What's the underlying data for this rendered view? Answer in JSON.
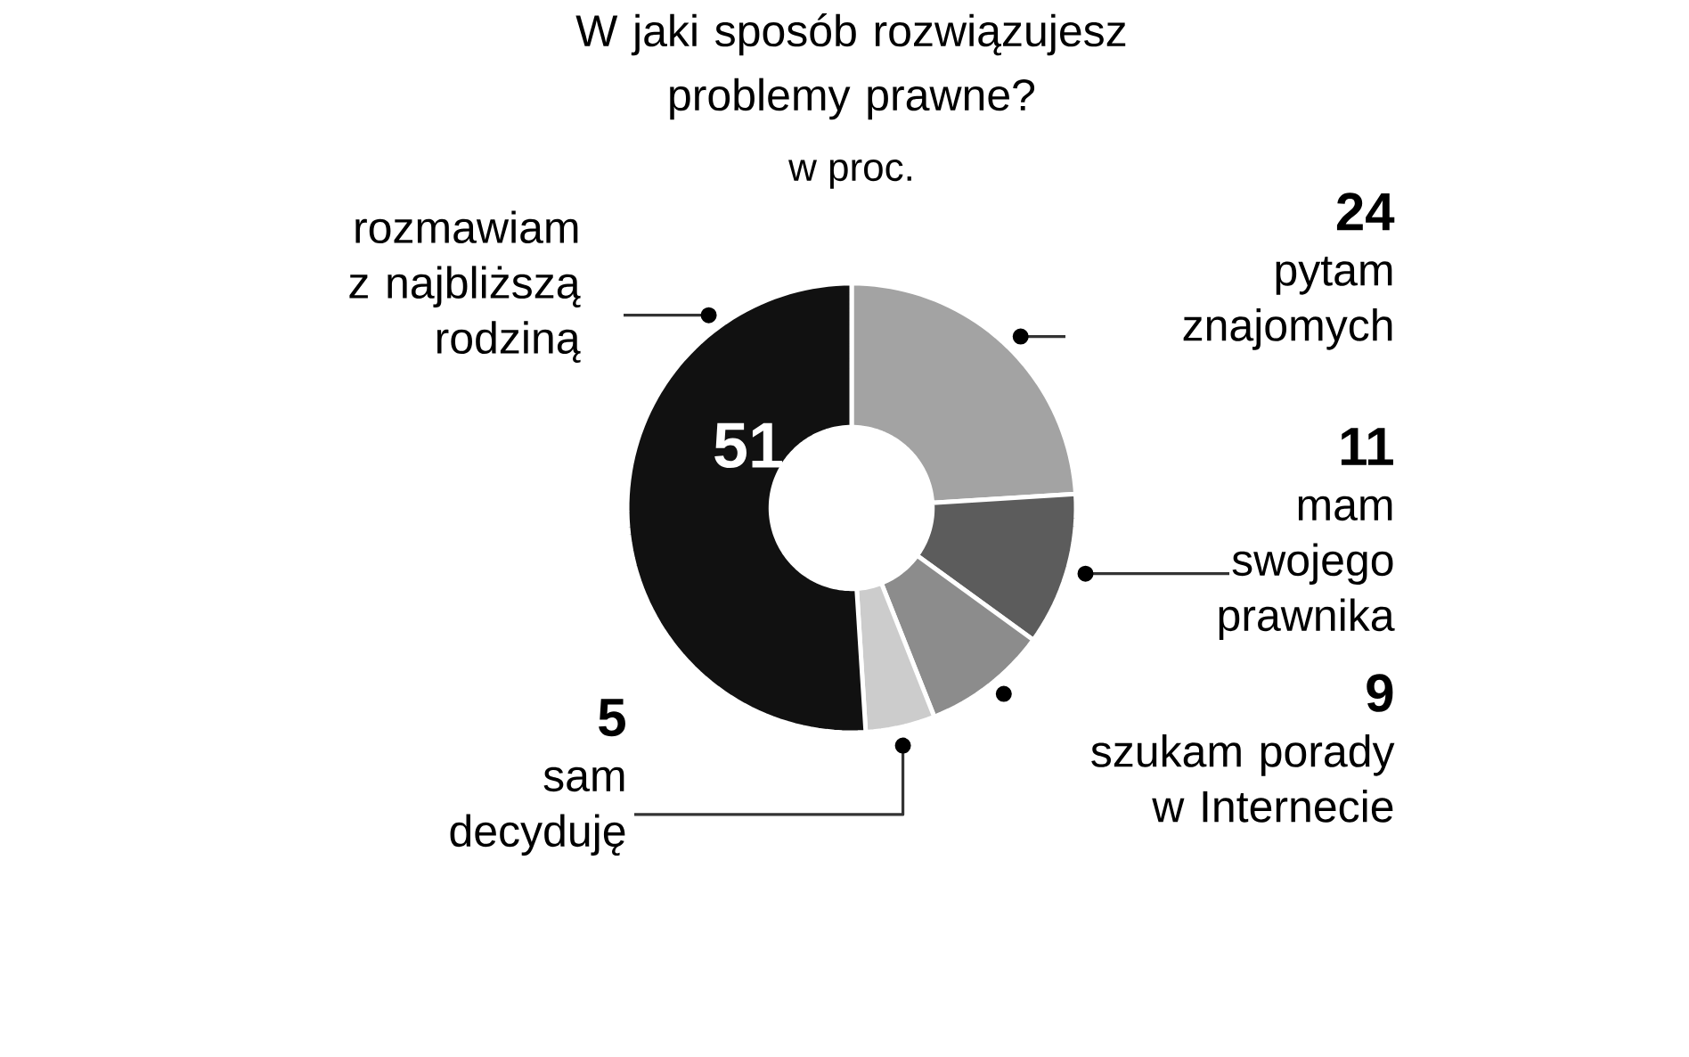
{
  "chart_data": {
    "type": "donut",
    "title": "W jaki sposób rozwiązujesz problemy prawne?",
    "subtitle": "w proc.",
    "categories": [
      "pytam znajomych",
      "mam swojego prawnika",
      "szukam porady w Internecie",
      "sam decyduję",
      "rozmawiam z najbliższą rodziną"
    ],
    "values": [
      24,
      11,
      9,
      5,
      51
    ],
    "colors": [
      "#a3a3a3",
      "#5c5c5c",
      "#8c8c8c",
      "#cccccc",
      "#111111"
    ],
    "data_labels": true
  }
}
